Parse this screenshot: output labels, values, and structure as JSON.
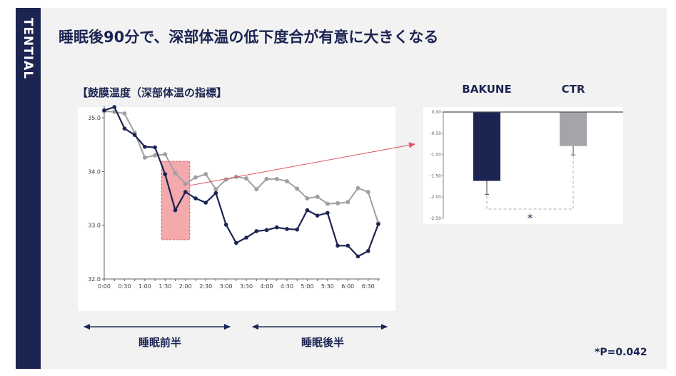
{
  "brand": "TENTIAL",
  "title": "睡眠後90分で、深部体温の低下度合が有意に大きくなる",
  "chart_data": [
    {
      "type": "line",
      "title": "【鼓膜温度（深部体温の指標】",
      "x": [
        "0:00",
        "0:15",
        "0:30",
        "0:45",
        "1:00",
        "1:15",
        "1:30",
        "1:45",
        "2:00",
        "2:15",
        "2:30",
        "2:45",
        "3:00",
        "3:15",
        "3:30",
        "3:45",
        "4:00",
        "4:15",
        "4:30",
        "4:45",
        "5:00",
        "5:15",
        "5:30",
        "5:45",
        "6:00",
        "6:15",
        "6:30",
        "6:45"
      ],
      "xticks": [
        "0:00",
        "0:30",
        "1:00",
        "1:30",
        "2:00",
        "2:30",
        "3:00",
        "3:30",
        "4:00",
        "4:30",
        "5:00",
        "5:30",
        "6:00",
        "6:30"
      ],
      "yticks": [
        "35.0",
        "34.0",
        "33.0",
        "32.0"
      ],
      "ylim": [
        32.0,
        35.3
      ],
      "series": [
        {
          "color": "#1c2452",
          "values": [
            35.14,
            35.2,
            34.8,
            34.68,
            34.46,
            34.45,
            33.95,
            33.28,
            33.62,
            33.5,
            33.42,
            33.6,
            33.01,
            32.67,
            32.77,
            32.89,
            32.91,
            32.96,
            32.93,
            32.92,
            33.28,
            33.18,
            33.23,
            32.62,
            32.62,
            32.42,
            32.52,
            33.02
          ]
        },
        {
          "color": "#a0a0a4",
          "values": [
            35.12,
            35.11,
            35.08,
            34.72,
            34.26,
            34.3,
            34.32,
            33.97,
            33.77,
            33.89,
            33.95,
            33.67,
            33.85,
            33.9,
            33.87,
            33.67,
            33.86,
            33.86,
            33.82,
            33.68,
            33.5,
            33.53,
            33.4,
            33.41,
            33.43,
            33.69,
            33.62,
            33.04
          ]
        }
      ],
      "highlight_x": [
        "1:30",
        "2:00"
      ],
      "ranges": [
        "睡眠前半",
        "睡眠後半"
      ]
    },
    {
      "type": "bar",
      "categories": [
        "BAKUNE",
        "CTR"
      ],
      "values": [
        -1.62,
        -0.8
      ],
      "errors": [
        0.32,
        0.21
      ],
      "colors": [
        "#1c2452",
        "#a5a5a9"
      ],
      "yticks": [
        "0.00",
        "-0.50",
        "-1.00",
        "-1.50",
        "-2.00",
        "-2.50"
      ],
      "ylim": [
        -2.5,
        0
      ],
      "significance": "*",
      "pvalue": "*P=0.042"
    }
  ]
}
